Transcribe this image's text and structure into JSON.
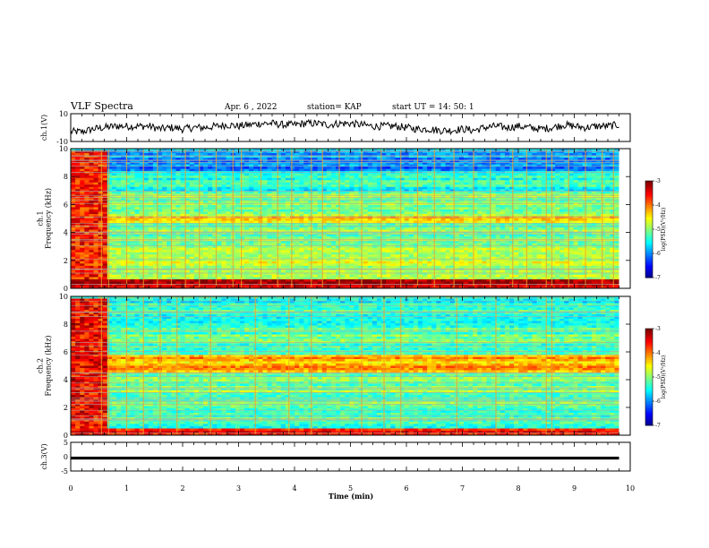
{
  "header": {
    "title": "VLF Spectra",
    "date": "Apr. 6 , 2022",
    "station": "station= KAP",
    "start": "start UT = 14: 50: 1"
  },
  "chart_data": [
    {
      "type": "line",
      "name": "ch.1 waveform",
      "ylabel": "ch.1(V)",
      "ylim": [
        -10,
        10
      ],
      "yticks": [
        "10",
        "-10"
      ],
      "xlim": [
        0,
        10
      ],
      "x_end": 9.8,
      "y_mean": [
        -3,
        -3,
        -1,
        0,
        1,
        1,
        1,
        1,
        -1,
        0,
        -1,
        0,
        0,
        1,
        2,
        1,
        2,
        3,
        3,
        2,
        2,
        3,
        3,
        2,
        3,
        3,
        2,
        1,
        1,
        1,
        0,
        -1,
        -1,
        -2,
        -2,
        -1,
        -2,
        0,
        1,
        0,
        1,
        0,
        -1,
        0,
        2,
        1,
        0,
        1,
        1,
        2
      ]
    },
    {
      "type": "heatmap",
      "name": "ch.1 spectrogram",
      "ylabel": "ch.1\nFrequency (kHz)",
      "ylim": [
        0,
        10
      ],
      "yticks": [
        "0",
        "2",
        "4",
        "6",
        "8",
        "10"
      ],
      "xlim": [
        0,
        10
      ],
      "x_end": 9.8,
      "colorbar": {
        "label": "log(PSD)(V²/Hz)",
        "range": [
          -7,
          -3
        ],
        "ticks": [
          "-3",
          "-4",
          "-5",
          "-6",
          "-7"
        ]
      },
      "bands_khz": [
        {
          "from": 0,
          "to": 0.7,
          "level": -3.2
        },
        {
          "from": 0.7,
          "to": 2.2,
          "level": -4.7
        },
        {
          "from": 2.2,
          "to": 3.3,
          "level": -4.9
        },
        {
          "from": 3.3,
          "to": 4.7,
          "level": -5.0
        },
        {
          "from": 4.7,
          "to": 5.2,
          "level": -4.3
        },
        {
          "from": 5.2,
          "to": 6.8,
          "level": -5.0
        },
        {
          "from": 6.8,
          "to": 8.4,
          "level": -5.4
        },
        {
          "from": 8.4,
          "to": 9.8,
          "level": -5.9
        },
        {
          "from": 9.8,
          "to": 10,
          "level": -5.5
        }
      ],
      "early_burst": {
        "until_min": 0.65,
        "level": -3.6
      },
      "spike_times_min": [
        0.55,
        0.68,
        1.0,
        1.3,
        1.55,
        1.8,
        2.05,
        2.3,
        2.6,
        2.9,
        3.05,
        3.4,
        3.7,
        3.95,
        4.3,
        4.5,
        4.8,
        5.2,
        5.55,
        5.9,
        6.2,
        6.5,
        6.85,
        7.2,
        7.5,
        7.9,
        8.15,
        8.5,
        8.6,
        8.9,
        9.2,
        9.5,
        9.7
      ]
    },
    {
      "type": "heatmap",
      "name": "ch.2 spectrogram",
      "ylabel": "ch.2\nFrequency (kHz)",
      "ylim": [
        0,
        10
      ],
      "yticks": [
        "0",
        "2",
        "4",
        "6",
        "8",
        "10"
      ],
      "xlim": [
        0,
        10
      ],
      "x_end": 9.8,
      "colorbar": {
        "label": "log(PSD)(V²/Hz)",
        "range": [
          -7,
          -3
        ],
        "ticks": [
          "-3",
          "-4",
          "-5",
          "-6",
          "-7"
        ]
      },
      "bands_khz": [
        {
          "from": 0,
          "to": 0.5,
          "level": -3.5
        },
        {
          "from": 0.5,
          "to": 2.0,
          "level": -5.2
        },
        {
          "from": 2.0,
          "to": 3.0,
          "level": -5.1
        },
        {
          "from": 3.0,
          "to": 4.5,
          "level": -5.0
        },
        {
          "from": 4.5,
          "to": 5.8,
          "level": -4.2
        },
        {
          "from": 5.8,
          "to": 7.5,
          "level": -5.1
        },
        {
          "from": 7.5,
          "to": 9.0,
          "level": -5.3
        },
        {
          "from": 9.0,
          "to": 10,
          "level": -5.4
        }
      ],
      "early_burst": {
        "until_min": 0.65,
        "level": -3.5
      },
      "spike_times_min": [
        0.55,
        0.68,
        1.0,
        1.3,
        1.6,
        1.9,
        2.5,
        3.3,
        3.9,
        4.3,
        5.2,
        5.6,
        5.9,
        6.9,
        7.6,
        8.5,
        8.6
      ]
    },
    {
      "type": "line",
      "name": "ch.3 signal",
      "ylabel": "ch.3(V)",
      "ylim": [
        -5,
        5
      ],
      "yticks": [
        "5",
        "0",
        "-5"
      ],
      "xlim": [
        0,
        10
      ],
      "x_end": 9.8,
      "band": [
        -1,
        0
      ]
    }
  ],
  "x_axis": {
    "label": "Time (min)",
    "ticks": [
      "0",
      "1",
      "2",
      "3",
      "4",
      "5",
      "6",
      "7",
      "8",
      "9",
      "10"
    ]
  }
}
